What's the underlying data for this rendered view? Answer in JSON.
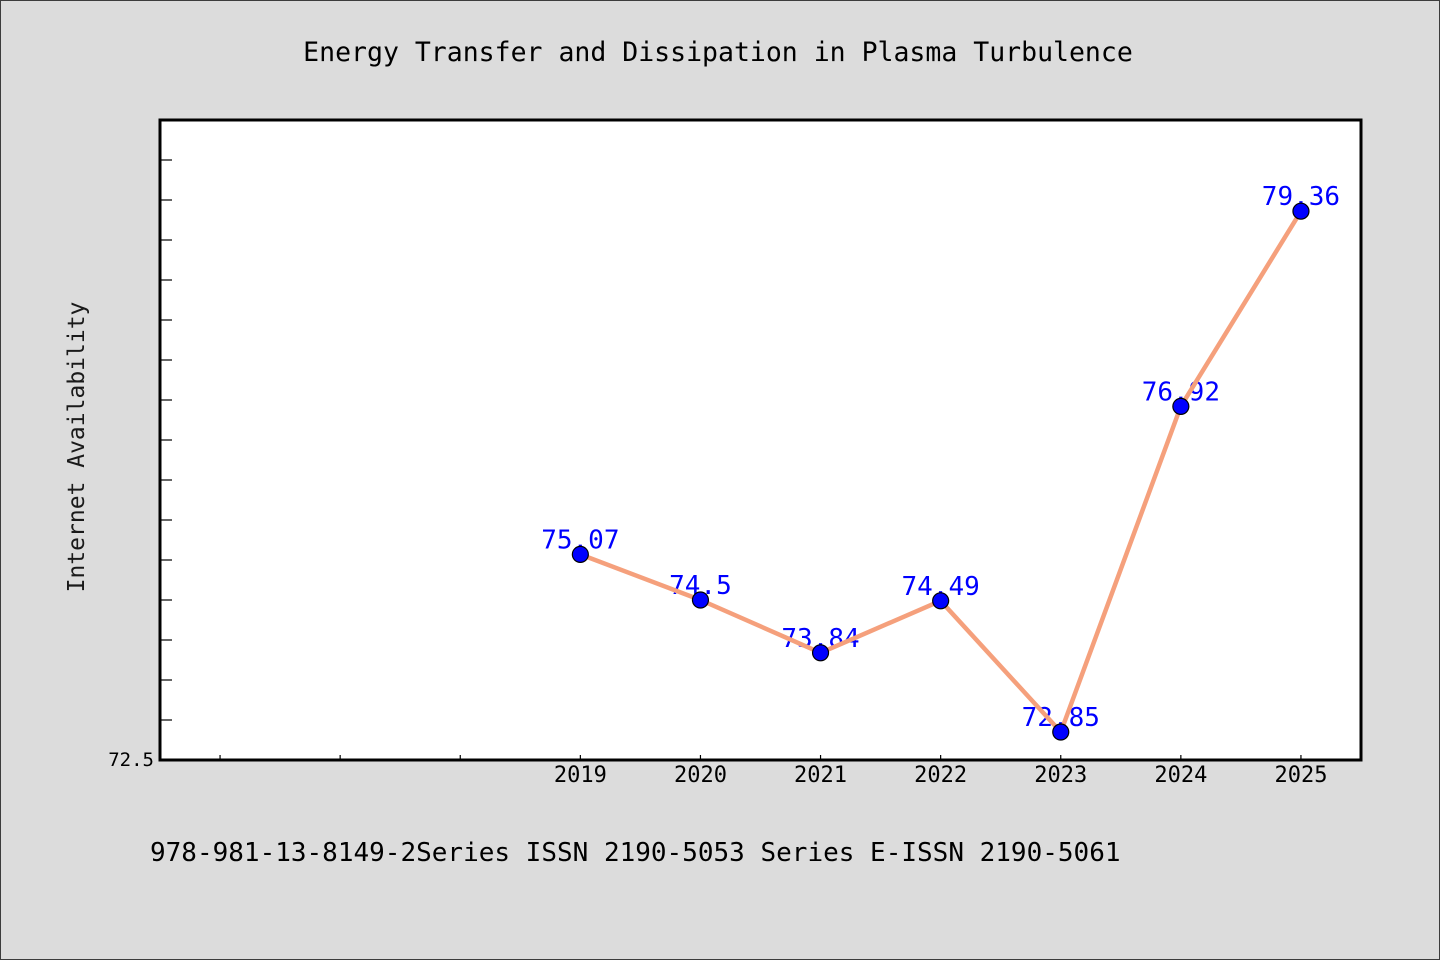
{
  "chart_data": {
    "type": "line",
    "title": "Energy Transfer and Dissipation in Plasma Turbulence",
    "ylabel": "Internet Availability",
    "categories": [
      "2019",
      "2020",
      "2021",
      "2022",
      "2023",
      "2024",
      "2025"
    ],
    "x": [
      2019,
      2020,
      2021,
      2022,
      2023,
      2024,
      2025
    ],
    "series": [
      {
        "values": [
          75.07,
          74.5,
          73.84,
          74.49,
          72.85,
          76.92,
          79.36
        ]
      }
    ],
    "data_labels": true,
    "xlim": [
      2015.5,
      2025.5
    ],
    "ylim": [
      72.5,
      80.5
    ],
    "xtick_values": [
      2016,
      2017,
      2018,
      2019,
      2020,
      2021,
      2022,
      2023,
      2024,
      2025
    ],
    "ytick_values": [
      72.5
    ],
    "ytick_labels": [
      "72.5"
    ],
    "ytick_step": 0.5,
    "grid": false,
    "legend": "none"
  },
  "footer": "978-981-13-8149-2Series ISSN 2190-5053 Series E-ISSN 2190-5061",
  "colors": {
    "background": "#dcdcdc",
    "plot_background": "#ffffff",
    "line": "#f5a07c",
    "marker": "#0000ff",
    "marker_edge": "#000000",
    "data_label": "#0000ff"
  }
}
